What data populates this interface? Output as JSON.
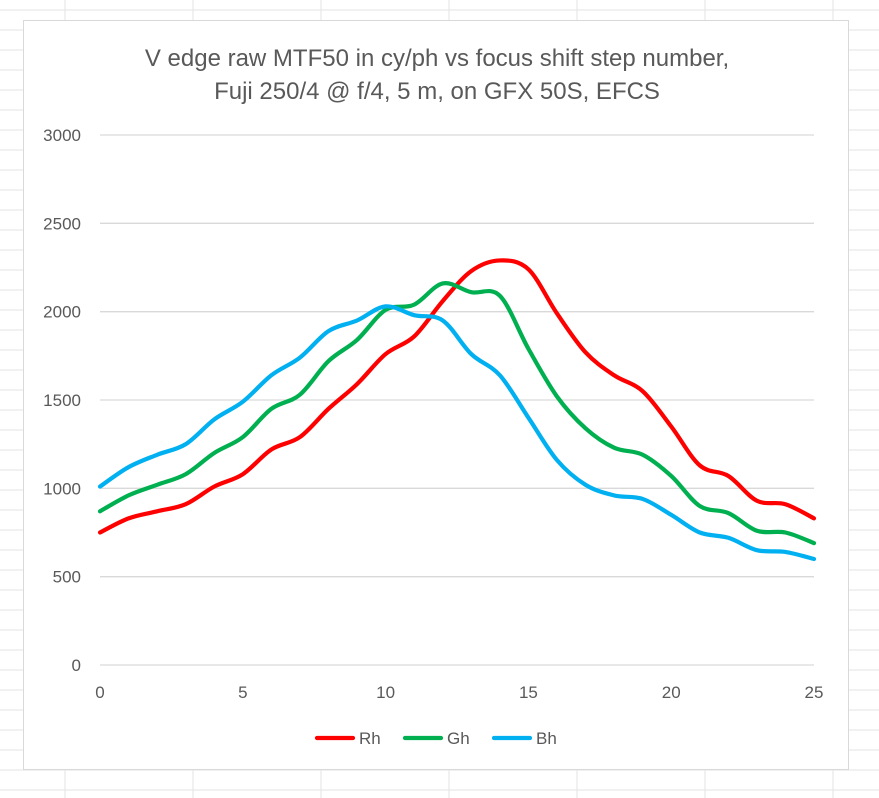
{
  "chart_data": {
    "type": "line",
    "title": "V edge raw MTF50 in cy/ph vs focus shift step number,",
    "subtitle": "Fuji 250/4 @ f/4, 5 m, on GFX 50S, EFCS",
    "xlabel": "",
    "ylabel": "",
    "xlim": [
      0,
      25
    ],
    "ylim": [
      0,
      3000
    ],
    "x_ticks": [
      "0",
      "5",
      "10",
      "15",
      "20",
      "25"
    ],
    "y_ticks": [
      "0",
      "500",
      "1000",
      "1500",
      "2000",
      "2500",
      "3000"
    ],
    "grid": "horizontal",
    "legend_position": "bottom",
    "x": [
      0,
      1,
      2,
      3,
      4,
      5,
      6,
      7,
      8,
      9,
      10,
      11,
      12,
      13,
      14,
      15,
      16,
      17,
      18,
      19,
      20,
      21,
      22,
      23,
      24,
      25
    ],
    "series": [
      {
        "name": "Rh",
        "color": "#ff0000",
        "values": [
          750,
          830,
          870,
          910,
          1010,
          1080,
          1220,
          1290,
          1450,
          1590,
          1760,
          1860,
          2060,
          2230,
          2290,
          2240,
          1990,
          1770,
          1640,
          1550,
          1350,
          1130,
          1070,
          930,
          910,
          830
        ]
      },
      {
        "name": "Gh",
        "color": "#00b050",
        "values": [
          870,
          960,
          1020,
          1080,
          1200,
          1290,
          1450,
          1530,
          1720,
          1840,
          2010,
          2040,
          2160,
          2110,
          2090,
          1790,
          1520,
          1340,
          1230,
          1190,
          1070,
          900,
          860,
          760,
          750,
          690
        ]
      },
      {
        "name": "Bh",
        "color": "#00b0f0",
        "values": [
          1010,
          1120,
          1190,
          1250,
          1390,
          1490,
          1640,
          1740,
          1890,
          1950,
          2030,
          1980,
          1950,
          1760,
          1640,
          1400,
          1160,
          1020,
          960,
          940,
          850,
          750,
          720,
          650,
          640,
          600
        ]
      }
    ]
  }
}
